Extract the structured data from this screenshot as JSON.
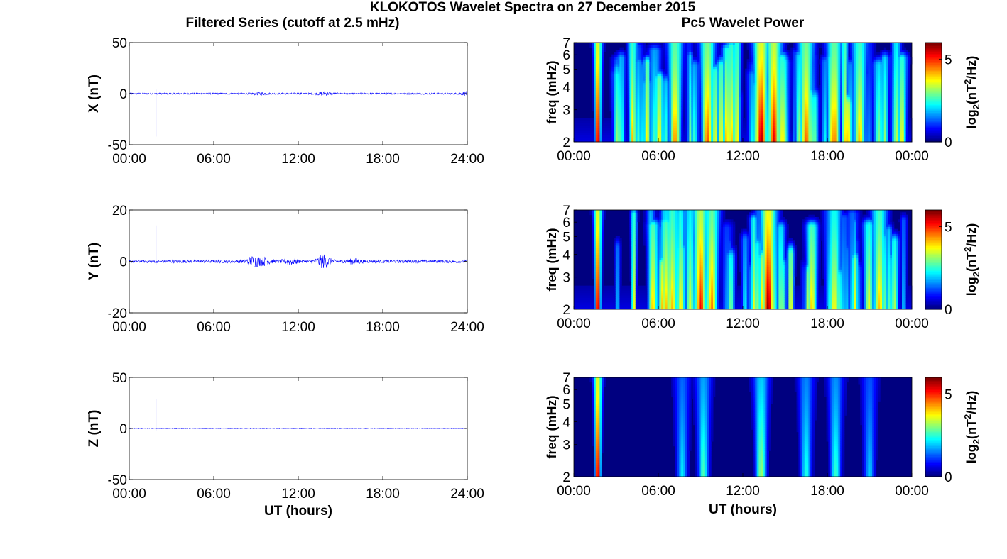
{
  "figure": {
    "suptitle": "KLOKOTOS Wavelet Spectra on 27 December 2015",
    "left_title": "Filtered Series (cutoff at 2.5 mHz)",
    "right_title": "Pc5 Wavelet Power"
  },
  "colors": {
    "trace": "#0000ff",
    "axis": "#000000",
    "colormap": "jet",
    "background": "#ffffff"
  },
  "chart_data": [
    {
      "type": "line",
      "panel": "filtered-x",
      "ylabel": "X (nT)",
      "xlabel": "",
      "xticks": [
        "00:00",
        "06:00",
        "12:00",
        "18:00",
        "24:00"
      ],
      "yticks": [
        "50",
        "0",
        "-50"
      ],
      "xlim": [
        0,
        24
      ],
      "ylim": [
        -50,
        50
      ],
      "noise_amplitude": 0.8,
      "disturbances": [
        {
          "t": 9.3,
          "amp": 1.0
        },
        {
          "t": 13.8,
          "amp": 1.5
        },
        {
          "t": 23.9,
          "amp": 1.2
        }
      ],
      "spike": {
        "t": 1.9,
        "min": -42,
        "max": 4
      }
    },
    {
      "type": "line",
      "panel": "filtered-y",
      "ylabel": "Y (nT)",
      "xlabel": "",
      "xticks": [
        "00:00",
        "06:00",
        "12:00",
        "18:00",
        "24:00"
      ],
      "yticks": [
        "20",
        "0",
        "-20"
      ],
      "xlim": [
        0,
        24
      ],
      "ylim": [
        -20,
        20
      ],
      "noise_amplitude": 0.6,
      "disturbances": [
        {
          "t": 8.8,
          "amp": 1.8
        },
        {
          "t": 9.6,
          "amp": 1.2
        },
        {
          "t": 11.4,
          "amp": 1.0
        },
        {
          "t": 13.8,
          "amp": 2.4
        },
        {
          "t": 16.0,
          "amp": 0.8
        }
      ],
      "spike": {
        "t": 1.9,
        "min": -1.5,
        "max": 14
      }
    },
    {
      "type": "line",
      "panel": "filtered-z",
      "ylabel": "Z (nT)",
      "xlabel": "UT (hours)",
      "xticks": [
        "00:00",
        "06:00",
        "12:00",
        "18:00",
        "24:00"
      ],
      "yticks": [
        "50",
        "0",
        "-50"
      ],
      "xlim": [
        0,
        24
      ],
      "ylim": [
        -50,
        50
      ],
      "noise_amplitude": 0.3,
      "disturbances": [],
      "spike": {
        "t": 1.9,
        "min": -2,
        "max": 29
      }
    },
    {
      "type": "heatmap",
      "panel": "wavelet-x",
      "ylabel": "freq (mHz)",
      "xlabel": "",
      "xticks": [
        "00:00",
        "06:00",
        "12:00",
        "18:00",
        "00:00"
      ],
      "yticks": [
        "7",
        "6",
        "5",
        "4",
        "3",
        "2"
      ],
      "xlim": [
        0,
        24
      ],
      "ylim_mhz": [
        2,
        7
      ],
      "yscale": "log",
      "colorbar": {
        "label": "log2(nT2/Hz)",
        "min": 0,
        "max": 6,
        "ticks": [
          "5",
          "0"
        ]
      },
      "activity": "high",
      "strong_bursts": [
        {
          "t": 1.7,
          "level": 6.0
        },
        {
          "t": 7.2,
          "level": 4.5
        },
        {
          "t": 9.5,
          "level": 4.8
        },
        {
          "t": 13.3,
          "level": 5.8
        },
        {
          "t": 14.2,
          "level": 5.5
        },
        {
          "t": 16.5,
          "level": 4.8
        },
        {
          "t": 18.5,
          "level": 4.6
        },
        {
          "t": 20.3,
          "level": 4.2
        }
      ]
    },
    {
      "type": "heatmap",
      "panel": "wavelet-y",
      "ylabel": "freq (mHz)",
      "xlabel": "",
      "xticks": [
        "00:00",
        "06:00",
        "12:00",
        "18:00",
        "00:00"
      ],
      "yticks": [
        "7",
        "6",
        "5",
        "4",
        "3",
        "2"
      ],
      "xlim": [
        0,
        24
      ],
      "ylim_mhz": [
        2,
        7
      ],
      "yscale": "log",
      "colorbar": {
        "label": "log2(nT2/Hz)",
        "min": 0,
        "max": 6,
        "ticks": [
          "5",
          "0"
        ]
      },
      "activity": "high",
      "strong_bursts": [
        {
          "t": 1.7,
          "level": 6.0
        },
        {
          "t": 7.0,
          "level": 4.2
        },
        {
          "t": 9.0,
          "level": 5.4
        },
        {
          "t": 9.8,
          "level": 4.6
        },
        {
          "t": 13.8,
          "level": 6.0
        },
        {
          "t": 18.5,
          "level": 3.8
        },
        {
          "t": 21.7,
          "level": 4.2
        }
      ]
    },
    {
      "type": "heatmap",
      "panel": "wavelet-z",
      "ylabel": "freq (mHz)",
      "xlabel": "UT (hours)",
      "xticks": [
        "00:00",
        "06:00",
        "12:00",
        "18:00",
        "00:00"
      ],
      "yticks": [
        "7",
        "6",
        "5",
        "4",
        "3",
        "2"
      ],
      "xlim": [
        0,
        24
      ],
      "ylim_mhz": [
        2,
        7
      ],
      "yscale": "log",
      "colorbar": {
        "label": "log2(nT2/Hz)",
        "min": 0,
        "max": 6,
        "ticks": [
          "5",
          "0"
        ]
      },
      "activity": "low",
      "strong_bursts": [
        {
          "t": 1.7,
          "level": 6.0
        },
        {
          "t": 7.7,
          "level": 2.2
        },
        {
          "t": 9.2,
          "level": 2.8
        },
        {
          "t": 13.3,
          "level": 3.2
        },
        {
          "t": 16.5,
          "level": 2.5
        },
        {
          "t": 18.6,
          "level": 2.6
        },
        {
          "t": 21.0,
          "level": 2.0
        }
      ]
    }
  ]
}
